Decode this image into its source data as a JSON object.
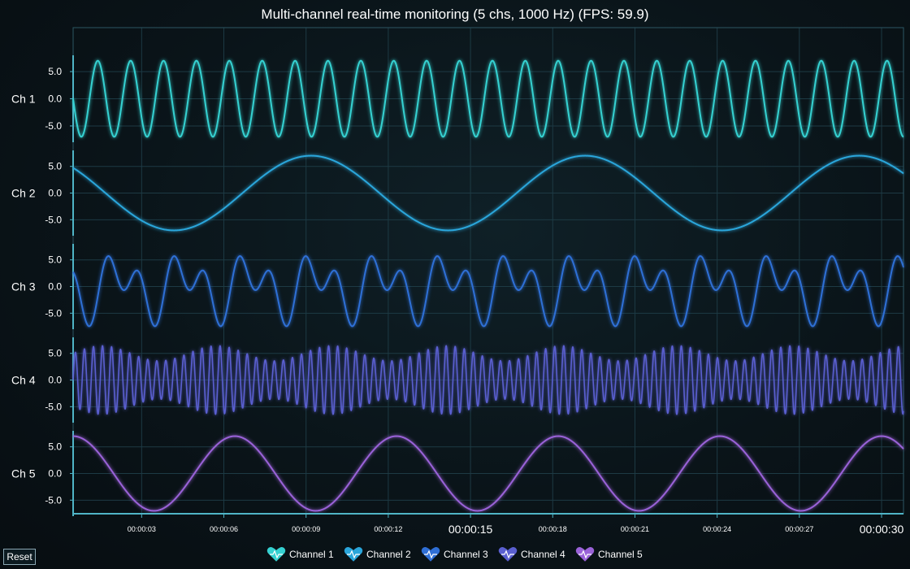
{
  "title": "Multi-channel real-time monitoring (5 chs, 1000 Hz) (FPS: 59.9)",
  "reset_label": "Reset",
  "colors": {
    "channels": [
      "#35d1d1",
      "#2aa6db",
      "#2f6fd6",
      "#5a5fd0",
      "#9a62d8"
    ],
    "axis": "#4fb4c6",
    "grid": "#1d3a44"
  },
  "chart_data": {
    "type": "line",
    "title": "Multi-channel real-time monitoring (5 chs, 1000 Hz) (FPS: 59.9)",
    "x_unit": "seconds",
    "xlim": [
      0.5,
      30.8
    ],
    "x_ticks": [
      {
        "value": 3,
        "label": "00:00:03",
        "major": false
      },
      {
        "value": 6,
        "label": "00:00:06",
        "major": false
      },
      {
        "value": 9,
        "label": "00:00:09",
        "major": false
      },
      {
        "value": 12,
        "label": "00:00:12",
        "major": false
      },
      {
        "value": 15,
        "label": "00:00:15",
        "major": true
      },
      {
        "value": 18,
        "label": "00:00:18",
        "major": false
      },
      {
        "value": 21,
        "label": "00:00:21",
        "major": false
      },
      {
        "value": 24,
        "label": "00:00:24",
        "major": false
      },
      {
        "value": 27,
        "label": "00:00:27",
        "major": false
      },
      {
        "value": 30,
        "label": "00:00:30",
        "major": true
      }
    ],
    "y_ticks": [
      "5.0",
      "0.0",
      "-5.0"
    ],
    "ylim": [
      -8,
      8
    ],
    "series": [
      {
        "name": "Channel 1",
        "axis_label": "Ch 1",
        "waveform": "sine",
        "amplitude": 7,
        "period_s": 1.2,
        "phase_at_start_deg": 0
      },
      {
        "name": "Channel 2",
        "axis_label": "Ch 2",
        "waveform": "sine",
        "amplitude": 7,
        "period_s": 10,
        "phase_at_start_deg": 25
      },
      {
        "name": "Channel 3",
        "axis_label": "Ch 3",
        "waveform": "sum of sines",
        "amplitude": 7,
        "period_s": 2.4,
        "phase_at_start_deg": 200
      },
      {
        "name": "Channel 4",
        "axis_label": "Ch 4",
        "waveform": "sine with beat",
        "amplitude": 7,
        "period_s": 0.33,
        "phase_at_start_deg": 0
      },
      {
        "name": "Channel 5",
        "axis_label": "Ch 5",
        "waveform": "sine",
        "amplitude": 7,
        "period_s": 5.9,
        "phase_at_start_deg": 90
      }
    ],
    "legend_position": "bottom-center",
    "grid": true
  }
}
